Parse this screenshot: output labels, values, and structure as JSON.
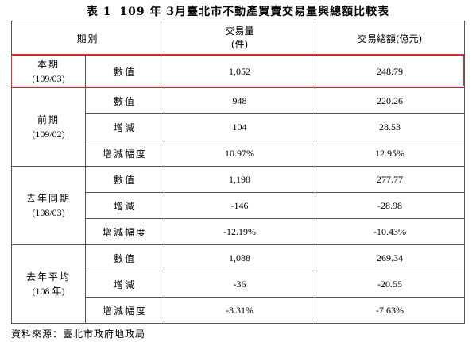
{
  "title": {
    "table_no": "表 1",
    "text": "109 年 3月臺北市不動產買賣交易量與總額比較表"
  },
  "header": {
    "period": "期別",
    "count_line1": "交易量",
    "count_line2": "(件)",
    "amount": "交易總額(億元)"
  },
  "groups": [
    {
      "name": "本期",
      "code": "(109/03)",
      "rows": [
        {
          "metric": "數值",
          "count": "1,052",
          "amount": "248.79"
        }
      ]
    },
    {
      "name": "前期",
      "code": "(109/02)",
      "rows": [
        {
          "metric": "數值",
          "count": "948",
          "amount": "220.26"
        },
        {
          "metric": "增減",
          "count": "104",
          "amount": "28.53"
        },
        {
          "metric": "增減幅度",
          "count": "10.97%",
          "amount": "12.95%"
        }
      ]
    },
    {
      "name": "去年同期",
      "code": "(108/03)",
      "rows": [
        {
          "metric": "數值",
          "count": "1,198",
          "amount": "277.77"
        },
        {
          "metric": "增減",
          "count": "-146",
          "amount": "-28.98"
        },
        {
          "metric": "增減幅度",
          "count": "-12.19%",
          "amount": "-10.43%"
        }
      ]
    },
    {
      "name": "去年平均",
      "code": "(108 年)",
      "rows": [
        {
          "metric": "數值",
          "count": "1,088",
          "amount": "269.34"
        },
        {
          "metric": "增減",
          "count": "-36",
          "amount": "-20.55"
        },
        {
          "metric": "增減幅度",
          "count": "-3.31%",
          "amount": "-7.63%"
        }
      ]
    }
  ],
  "source": "資料來源：臺北市政府地政局",
  "colors": {
    "highlight": "#e03030",
    "border": "#555555"
  }
}
